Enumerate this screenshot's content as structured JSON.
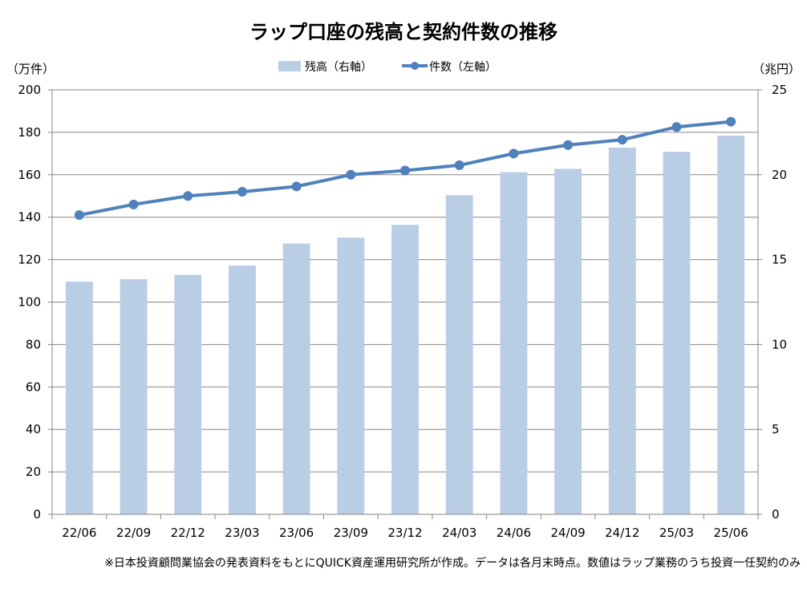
{
  "chart_data": {
    "type": "bar",
    "title": "ラップ口座の残高と契約件数の推移",
    "left_unit": "（万件）",
    "right_unit": "（兆円）",
    "footnote": "※日本投資顧問業協会の発表資料をもとにQUICK資産運用研究所が作成。データは各月末時点。数値はラップ業務のうち投資一任契約のみ",
    "categories": [
      "22/06",
      "22/09",
      "22/12",
      "23/03",
      "23/06",
      "23/09",
      "23/12",
      "24/03",
      "24/06",
      "24/09",
      "24/12",
      "25/03",
      "25/06"
    ],
    "series": [
      {
        "name": "残高（右軸）",
        "kind": "bar",
        "axis": "right",
        "color": "#b9cde5",
        "values": [
          13.7,
          13.85,
          14.1,
          14.65,
          15.95,
          16.3,
          17.05,
          18.8,
          20.15,
          20.35,
          21.6,
          21.35,
          22.3
        ]
      },
      {
        "name": "件数（左軸）",
        "kind": "line",
        "axis": "left",
        "color": "#4f81bd",
        "values": [
          141,
          146,
          150,
          152,
          154.5,
          160,
          162,
          164.5,
          170,
          174,
          176.5,
          182.5,
          185
        ]
      }
    ],
    "left_axis": {
      "min": 0,
      "max": 200,
      "step": 20,
      "ticks": [
        "0",
        "20",
        "40",
        "60",
        "80",
        "100",
        "120",
        "140",
        "160",
        "180",
        "200"
      ]
    },
    "right_axis": {
      "min": 0,
      "max": 25,
      "step": 5,
      "ticks": [
        "0",
        "5",
        "10",
        "15",
        "20",
        "25"
      ]
    },
    "grid": true,
    "legend_position": "top-center"
  }
}
